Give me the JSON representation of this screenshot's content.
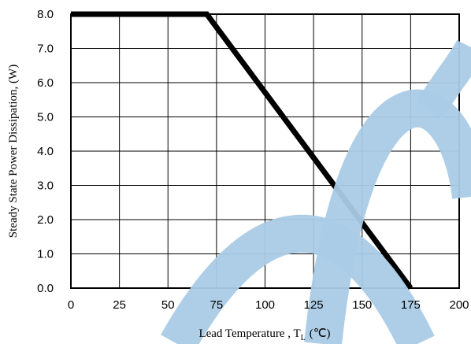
{
  "chart_data": {
    "type": "line",
    "xlabel": "Lead Temperature , T",
    "xlabel_sub": "L",
    "xlabel_unit": "(℃)",
    "ylabel": "Steady State Power Dissipation, (W)",
    "x_ticks": [
      "0",
      "25",
      "50",
      "75",
      "100",
      "125",
      "150",
      "175",
      "200"
    ],
    "y_ticks": [
      "0.0",
      "1.0",
      "2.0",
      "3.0",
      "4.0",
      "5.0",
      "6.0",
      "7.0",
      "8.0"
    ],
    "xlim": [
      0,
      200
    ],
    "ylim": [
      0,
      8
    ],
    "grid": true,
    "series": [
      {
        "x": [
          0,
          70,
          175
        ],
        "y": [
          8.0,
          8.0,
          0.0
        ],
        "color": "#000000"
      }
    ],
    "watermark_color": "#aacbe6"
  }
}
